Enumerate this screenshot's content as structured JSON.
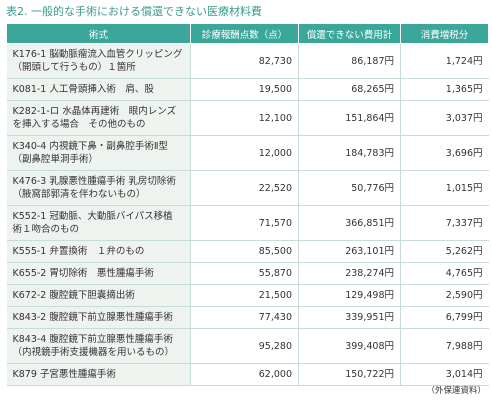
{
  "title": "表2. 一般的な手術における償還できない医療材料費",
  "table": {
    "header": [
      "術式",
      "診療報酬点数（点）",
      "償還できない費用計",
      "消費増税分"
    ],
    "rows": [
      [
        [
          "K176-1 脳動脈瘤流入血管クリッピング",
          "（開頭して行うもの）１箇所"
        ],
        "82,730",
        "86,187円",
        "1,724円"
      ],
      [
        [
          "K081-1 人工骨頭挿入術　肩、股"
        ],
        "19,500",
        "68,265円",
        "1,365円"
      ],
      [
        [
          "K282-1-ロ 水晶体再建術　眼内レンズ",
          "を挿入する場合　その他のもの"
        ],
        "12,100",
        "151,864円",
        "3,037円"
      ],
      [
        [
          "K340-4 内視鏡下鼻・副鼻腔手術Ⅱ型",
          "（副鼻腔単洞手術）"
        ],
        "12,000",
        "184,783円",
        "3,696円"
      ],
      [
        [
          "K476-3 乳腺悪性腫瘍手術 乳房切除術",
          "（腋窩部郭清を伴わないもの）"
        ],
        "22,520",
        "50,776円",
        "1,015円"
      ],
      [
        [
          "K552-1 冠動脈、大動脈バイパス移植",
          "術１吻合のもの"
        ],
        "71,570",
        "366,851円",
        "7,337円"
      ],
      [
        [
          "K555-1 弁置換術　１弁のもの"
        ],
        "85,500",
        "263,101円",
        "5,262円"
      ],
      [
        [
          "K655-2 胃切除術　悪性腫瘍手術"
        ],
        "55,870",
        "238,274円",
        "4,765円"
      ],
      [
        [
          "K672-2 腹腔鏡下胆嚢摘出術"
        ],
        "21,500",
        "129,498円",
        "2,590円"
      ],
      [
        [
          "K843-2 腹腔鏡下前立腺悪性腫瘍手術"
        ],
        "77,430",
        "339,951円",
        "6,799円"
      ],
      [
        [
          "K843-4 腹腔鏡下前立腺悪性腫瘍手術",
          "（内視鏡手術支援機器を用いるもの）"
        ],
        "95,280",
        "399,408円",
        "7,988円"
      ],
      [
        [
          "K879 子宮悪性腫瘍手術"
        ],
        "62,000",
        "150,722円",
        "3,014円"
      ]
    ]
  },
  "source": "（外保連資料）"
}
